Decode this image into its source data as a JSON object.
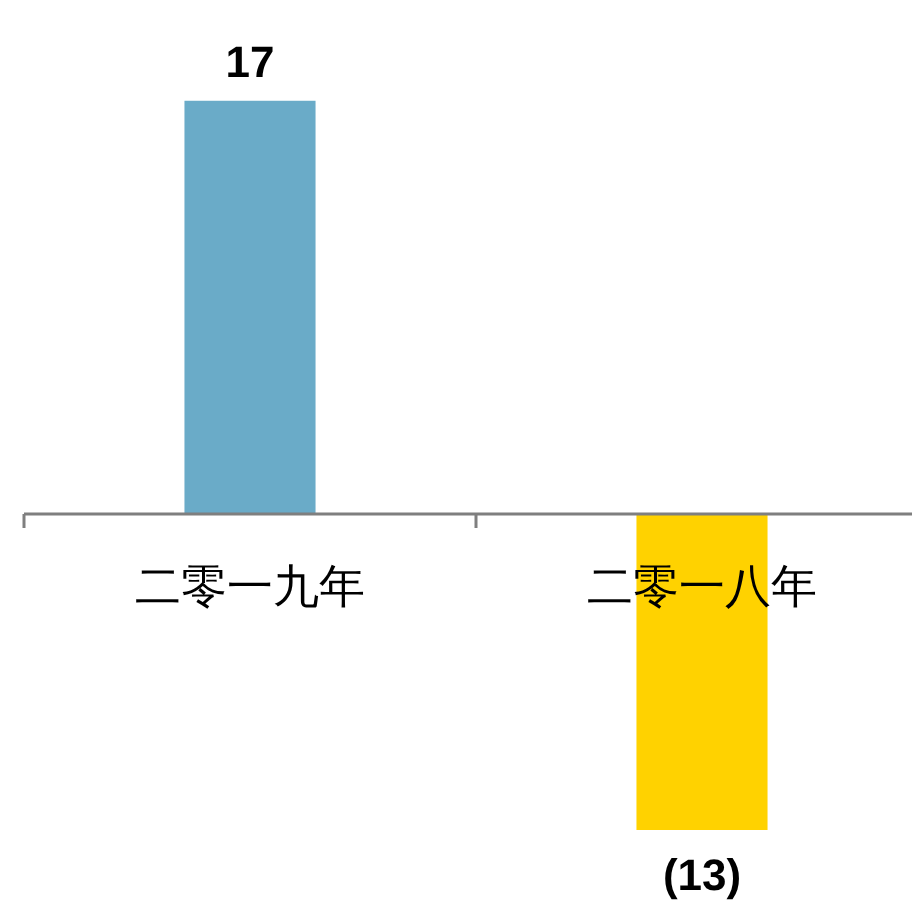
{
  "chart_data": {
    "type": "bar",
    "categories": [
      "二零一九年",
      "二零一八年"
    ],
    "values": [
      17,
      -13
    ],
    "colors": [
      "#6aabc8",
      "#ffd200"
    ],
    "value_labels": [
      "17",
      "(13)"
    ]
  }
}
